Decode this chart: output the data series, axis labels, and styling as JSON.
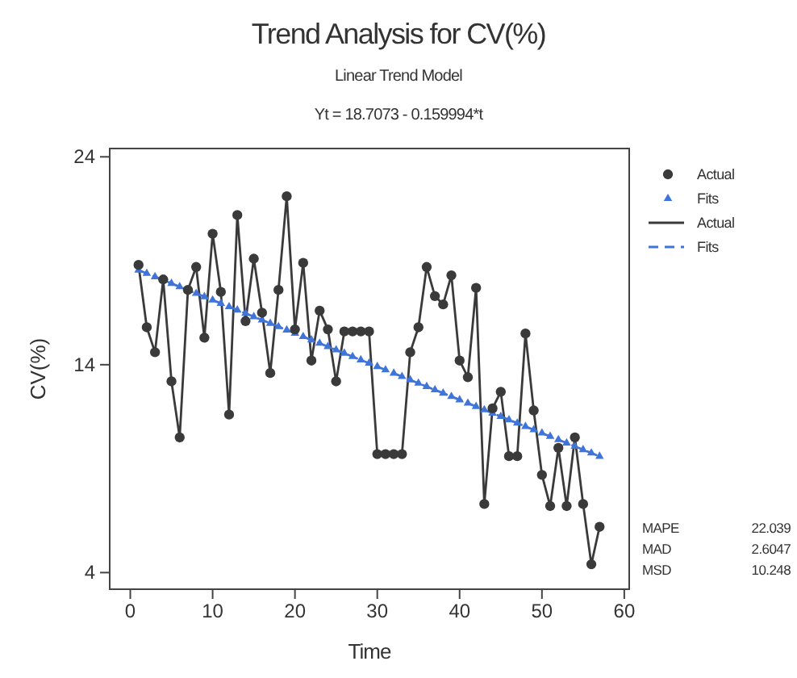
{
  "chart_data": {
    "type": "line",
    "title": "Trend Analysis for CV(%)",
    "subtitle": "Linear Trend Model",
    "xlabel": "Time",
    "ylabel": "CV(%)",
    "annotations": [
      "Yt = 18.7073 - 0.159994*t",
      "MAPE 22.039",
      "MAD 2.6047",
      "MSD 10.248"
    ],
    "x": [
      1,
      2,
      3,
      4,
      5,
      6,
      7,
      8,
      9,
      10,
      11,
      12,
      13,
      14,
      15,
      16,
      17,
      18,
      19,
      20,
      21,
      22,
      23,
      24,
      25,
      26,
      27,
      28,
      29,
      30,
      31,
      32,
      33,
      34,
      35,
      36,
      37,
      38,
      39,
      40,
      41,
      42,
      43,
      44,
      45,
      46,
      47,
      48,
      49,
      50,
      51,
      52,
      53,
      54,
      55,
      56,
      57
    ],
    "series": [
      {
        "name": "Actual",
        "color": "#3a3a3a",
        "marker": "circle",
        "line_style": "solid",
        "values": [
          18.8,
          15.8,
          14.6,
          18.1,
          13.2,
          10.5,
          17.6,
          18.7,
          15.3,
          20.3,
          17.5,
          11.6,
          21.2,
          16.1,
          19.1,
          16.5,
          13.6,
          17.6,
          22.1,
          15.7,
          18.9,
          14.2,
          16.6,
          15.7,
          13.2,
          15.6,
          15.6,
          15.6,
          15.6,
          9.7,
          9.7,
          9.7,
          9.7,
          14.6,
          15.8,
          18.7,
          17.3,
          16.9,
          18.3,
          14.2,
          13.4,
          17.7,
          7.3,
          11.9,
          12.7,
          9.6,
          9.6,
          15.5,
          11.8,
          8.7,
          7.2,
          10.0,
          7.2,
          10.5,
          7.3,
          4.4,
          6.2
        ]
      },
      {
        "name": "Fits",
        "color": "#3f74d9",
        "marker": "triangle",
        "line_style": "dashed",
        "values": [
          18.55,
          18.39,
          18.23,
          18.07,
          17.91,
          17.75,
          17.59,
          17.43,
          17.27,
          17.11,
          16.95,
          16.79,
          16.63,
          16.47,
          16.31,
          16.15,
          15.99,
          15.83,
          15.67,
          15.51,
          15.35,
          15.19,
          15.03,
          14.87,
          14.71,
          14.55,
          14.39,
          14.23,
          14.07,
          13.91,
          13.75,
          13.59,
          13.43,
          13.27,
          13.11,
          12.95,
          12.79,
          12.63,
          12.47,
          12.31,
          12.15,
          11.99,
          11.83,
          11.67,
          11.51,
          11.35,
          11.19,
          11.03,
          10.87,
          10.71,
          10.55,
          10.39,
          10.23,
          10.07,
          9.91,
          9.75,
          9.59
        ]
      }
    ],
    "xlim": [
      -2.5,
      60.6
    ],
    "ylim": [
      3.2,
      24.4
    ],
    "xticks": [
      0,
      10,
      20,
      30,
      40,
      50,
      60
    ],
    "yticks": [
      4,
      14,
      24
    ],
    "grid": false,
    "legend": "top right"
  }
}
